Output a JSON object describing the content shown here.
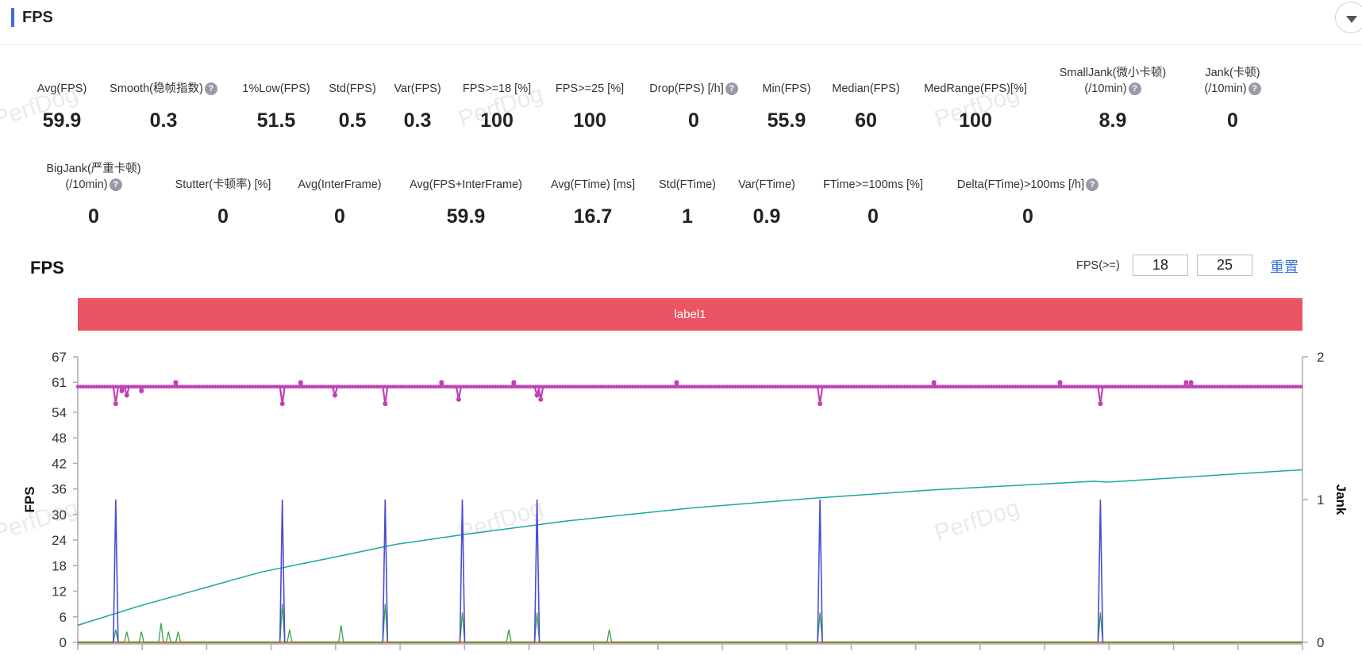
{
  "header": {
    "title": "FPS"
  },
  "metrics_row1": [
    {
      "label": "Avg(FPS)",
      "value": "59.9",
      "help": false
    },
    {
      "label": "Smooth(稳帧指数)",
      "value": "0.3",
      "help": true
    },
    {
      "label": "1%Low(FPS)",
      "value": "51.5",
      "help": false
    },
    {
      "label": "Std(FPS)",
      "value": "0.5",
      "help": false
    },
    {
      "label": "Var(FPS)",
      "value": "0.3",
      "help": false
    },
    {
      "label": "FPS>=18 [%]",
      "value": "100",
      "help": false
    },
    {
      "label": "FPS>=25 [%]",
      "value": "100",
      "help": false
    },
    {
      "label": "Drop(FPS) [/h]",
      "value": "0",
      "help": true
    },
    {
      "label": "Min(FPS)",
      "value": "55.9",
      "help": false
    },
    {
      "label": "Median(FPS)",
      "value": "60",
      "help": false
    },
    {
      "label": "MedRange(FPS)[%]",
      "value": "100",
      "help": false
    },
    {
      "label": "SmallJank(微小卡顿)",
      "label2": "(/10min)",
      "value": "8.9",
      "help": true
    },
    {
      "label": "Jank(卡顿)",
      "label2": "(/10min)",
      "value": "0",
      "help": true
    }
  ],
  "metrics_row2": [
    {
      "label": "BigJank(严重卡顿)",
      "label2": "(/10min)",
      "value": "0",
      "help": true
    },
    {
      "label": "Stutter(卡顿率) [%]",
      "value": "0",
      "help": false
    },
    {
      "label": "Avg(InterFrame)",
      "value": "0",
      "help": false
    },
    {
      "label": "Avg(FPS+InterFrame)",
      "value": "59.9",
      "help": false
    },
    {
      "label": "Avg(FTime) [ms]",
      "value": "16.7",
      "help": false
    },
    {
      "label": "Std(FTime)",
      "value": "1",
      "help": false
    },
    {
      "label": "Var(FTime)",
      "value": "0.9",
      "help": false
    },
    {
      "label": "FTime>=100ms [%]",
      "value": "0",
      "help": false
    },
    {
      "label": "Delta(FTime)>100ms [/h]",
      "value": "0",
      "help": true
    }
  ],
  "section": {
    "title": "FPS",
    "threshold_label": "FPS(>=)",
    "threshold1": "18",
    "threshold2": "25",
    "reset_label": "重置",
    "label_bar": "label1"
  },
  "watermark": "PerfDog",
  "chart_data": {
    "type": "line",
    "ylabel": "FPS",
    "y2label": "Jank",
    "ylim": [
      0,
      67
    ],
    "yticks": [
      0,
      6,
      12,
      18,
      24,
      30,
      36,
      42,
      48,
      54,
      61,
      67
    ],
    "y2lim": [
      0,
      2
    ],
    "y2ticks": [
      0,
      1,
      2
    ],
    "x_range": [
      0,
      1000
    ],
    "colors": {
      "fps": "#c23fb7",
      "jank": "#4a4ad6",
      "small_jank": "#39a34a",
      "trend": "#1aa79c",
      "bigjank": "#e07b39"
    },
    "fps_baseline": 60,
    "fps_dips": [
      [
        31,
        56
      ],
      [
        36,
        59
      ],
      [
        40,
        58
      ],
      [
        52,
        59
      ],
      [
        167,
        56
      ],
      [
        210,
        58
      ],
      [
        251,
        56
      ],
      [
        311,
        57
      ],
      [
        375,
        58
      ],
      [
        378,
        57
      ],
      [
        606,
        56
      ],
      [
        835,
        56
      ]
    ],
    "fps_peaks": [
      [
        80,
        61
      ],
      [
        182,
        61
      ],
      [
        297,
        61
      ],
      [
        356,
        61
      ],
      [
        489,
        61
      ],
      [
        699,
        61
      ],
      [
        802,
        61
      ],
      [
        905,
        61
      ],
      [
        909,
        61
      ]
    ],
    "jank_spikes": [
      31,
      167,
      251,
      314,
      375,
      606,
      835
    ],
    "jank_spike_value": 1,
    "small_jank_spikes": [
      [
        31,
        3
      ],
      [
        40,
        2.5
      ],
      [
        52,
        2.5
      ],
      [
        68,
        4.5
      ],
      [
        74,
        2.5
      ],
      [
        82,
        2.5
      ],
      [
        167,
        9
      ],
      [
        173,
        3
      ],
      [
        215,
        4
      ],
      [
        251,
        9
      ],
      [
        314,
        7
      ],
      [
        352,
        3
      ],
      [
        375,
        7
      ],
      [
        434,
        3
      ],
      [
        606,
        7
      ],
      [
        835,
        7
      ]
    ],
    "trend": [
      [
        0,
        4
      ],
      [
        50,
        8.5
      ],
      [
        100,
        12.5
      ],
      [
        150,
        16.5
      ],
      [
        210,
        20
      ],
      [
        260,
        23
      ],
      [
        320,
        25.5
      ],
      [
        400,
        28.5
      ],
      [
        500,
        31.5
      ],
      [
        600,
        33.8
      ],
      [
        700,
        35.8
      ],
      [
        830,
        37.8
      ],
      [
        840,
        37.6
      ],
      [
        1000,
        40.5
      ]
    ]
  }
}
